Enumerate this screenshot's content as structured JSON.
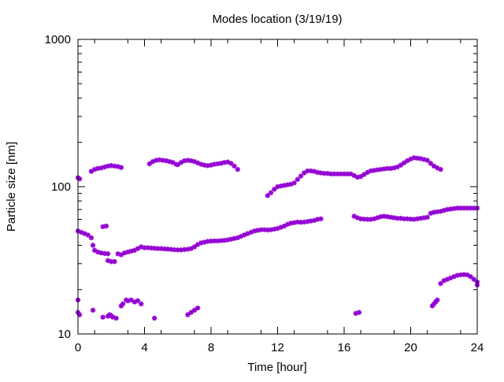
{
  "chart_data": {
    "type": "scatter",
    "title": "Modes location (3/19/19)",
    "xlabel": "Time [hour]",
    "ylabel": "Particle size [nm]",
    "xlim": [
      0,
      24
    ],
    "ylim": [
      10,
      1000
    ],
    "yscale": "log",
    "grid": false,
    "legend": "none",
    "x_ticks": [
      0,
      4,
      8,
      12,
      16,
      20,
      24
    ],
    "x_tick_labels": [
      "0",
      "4",
      "8",
      "12",
      "16",
      "20",
      "24"
    ],
    "y_ticks": [
      10,
      100,
      1000
    ],
    "y_tick_labels": [
      "10",
      "100",
      "1000"
    ],
    "marker_color": "#9400d3",
    "series": [
      {
        "points": [
          [
            0.0,
            115
          ],
          [
            0.1,
            113
          ],
          [
            0.8,
            127
          ],
          [
            1.0,
            131
          ],
          [
            1.2,
            133
          ],
          [
            1.4,
            134
          ],
          [
            1.6,
            136
          ],
          [
            1.8,
            138
          ],
          [
            2.0,
            139
          ],
          [
            2.2,
            138
          ],
          [
            2.4,
            137
          ],
          [
            2.6,
            135
          ],
          [
            4.3,
            143
          ],
          [
            4.5,
            148
          ],
          [
            4.7,
            151
          ],
          [
            4.9,
            152
          ],
          [
            5.1,
            151
          ],
          [
            5.3,
            150
          ],
          [
            5.5,
            148
          ],
          [
            5.7,
            146
          ],
          [
            5.9,
            142
          ],
          [
            6.0,
            141
          ],
          [
            6.2,
            146
          ],
          [
            6.4,
            150
          ],
          [
            6.6,
            151
          ],
          [
            6.8,
            150
          ],
          [
            7.0,
            148
          ],
          [
            7.2,
            145
          ],
          [
            7.4,
            142
          ],
          [
            7.6,
            140
          ],
          [
            7.8,
            139
          ],
          [
            8.0,
            140
          ],
          [
            8.2,
            142
          ],
          [
            8.4,
            143
          ],
          [
            8.6,
            144
          ],
          [
            8.8,
            146
          ],
          [
            9.0,
            147
          ],
          [
            9.2,
            144
          ],
          [
            9.4,
            138
          ],
          [
            9.6,
            131
          ],
          [
            11.4,
            87
          ],
          [
            11.6,
            91
          ],
          [
            11.8,
            96
          ],
          [
            12.0,
            100
          ],
          [
            12.2,
            101
          ],
          [
            12.4,
            102
          ],
          [
            12.6,
            103
          ],
          [
            12.8,
            104
          ],
          [
            13.0,
            106
          ],
          [
            13.2,
            112
          ],
          [
            13.4,
            118
          ],
          [
            13.6,
            124
          ],
          [
            13.8,
            128
          ],
          [
            14.0,
            128
          ],
          [
            14.2,
            127
          ],
          [
            14.4,
            125
          ],
          [
            14.6,
            124
          ],
          [
            14.8,
            123
          ],
          [
            15.0,
            123
          ],
          [
            15.2,
            122
          ],
          [
            15.4,
            122
          ],
          [
            15.6,
            122
          ],
          [
            15.8,
            122
          ],
          [
            16.0,
            122
          ],
          [
            16.2,
            122
          ],
          [
            16.4,
            122
          ],
          [
            16.6,
            119
          ],
          [
            16.8,
            116
          ],
          [
            17.0,
            117
          ],
          [
            17.2,
            121
          ],
          [
            17.4,
            125
          ],
          [
            17.6,
            128
          ],
          [
            17.8,
            129
          ],
          [
            18.0,
            130
          ],
          [
            18.2,
            131
          ],
          [
            18.4,
            132
          ],
          [
            18.6,
            133
          ],
          [
            18.8,
            133
          ],
          [
            19.0,
            134
          ],
          [
            19.2,
            136
          ],
          [
            19.4,
            140
          ],
          [
            19.6,
            145
          ],
          [
            19.8,
            150
          ],
          [
            20.0,
            154
          ],
          [
            20.2,
            157
          ],
          [
            20.4,
            156
          ],
          [
            20.6,
            155
          ],
          [
            20.8,
            153
          ],
          [
            21.0,
            151
          ],
          [
            21.2,
            144
          ],
          [
            21.4,
            138
          ],
          [
            21.6,
            134
          ],
          [
            21.8,
            131
          ],
          [
            0.0,
            50
          ],
          [
            0.2,
            49
          ],
          [
            0.4,
            48
          ],
          [
            0.6,
            47
          ],
          [
            0.8,
            45
          ],
          [
            0.9,
            40
          ],
          [
            1.0,
            37
          ],
          [
            1.2,
            36
          ],
          [
            1.4,
            35.5
          ],
          [
            1.6,
            35.2
          ],
          [
            1.8,
            35
          ],
          [
            1.5,
            53.5
          ],
          [
            1.7,
            54
          ],
          [
            1.8,
            31.5
          ],
          [
            2.0,
            31
          ],
          [
            2.2,
            31
          ],
          [
            2.4,
            35
          ],
          [
            2.6,
            34.5
          ],
          [
            2.8,
            35.5
          ],
          [
            3.0,
            36
          ],
          [
            3.2,
            36.5
          ],
          [
            3.4,
            37
          ],
          [
            3.6,
            38
          ],
          [
            3.8,
            39
          ],
          [
            4.0,
            38.5
          ],
          [
            4.2,
            38.5
          ],
          [
            4.4,
            38.3
          ],
          [
            4.6,
            38.2
          ],
          [
            4.8,
            38
          ],
          [
            5.0,
            38
          ],
          [
            5.2,
            37.8
          ],
          [
            5.4,
            37.7
          ],
          [
            5.6,
            37.5
          ],
          [
            5.8,
            37.3
          ],
          [
            6.0,
            37.2
          ],
          [
            6.2,
            37.2
          ],
          [
            6.4,
            37.4
          ],
          [
            6.6,
            37.6
          ],
          [
            6.8,
            38
          ],
          [
            7.0,
            39
          ],
          [
            7.2,
            40.5
          ],
          [
            7.4,
            41.5
          ],
          [
            7.6,
            42
          ],
          [
            7.8,
            42.5
          ],
          [
            8.0,
            42.7
          ],
          [
            8.2,
            42.8
          ],
          [
            8.4,
            42.8
          ],
          [
            8.6,
            43
          ],
          [
            8.8,
            43.2
          ],
          [
            9.0,
            43.5
          ],
          [
            9.2,
            44
          ],
          [
            9.4,
            44.5
          ],
          [
            9.6,
            45
          ],
          [
            9.8,
            46
          ],
          [
            10.0,
            47
          ],
          [
            10.2,
            48
          ],
          [
            10.4,
            49
          ],
          [
            10.6,
            50
          ],
          [
            10.8,
            50.5
          ],
          [
            11.0,
            51
          ],
          [
            11.2,
            51
          ],
          [
            11.4,
            50.8
          ],
          [
            11.6,
            51
          ],
          [
            11.8,
            51.5
          ],
          [
            12.0,
            52
          ],
          [
            12.2,
            53
          ],
          [
            12.4,
            54
          ],
          [
            12.6,
            55.5
          ],
          [
            12.8,
            56.5
          ],
          [
            13.0,
            57
          ],
          [
            13.2,
            57.5
          ],
          [
            13.4,
            57.3
          ],
          [
            13.6,
            57.5
          ],
          [
            13.8,
            58
          ],
          [
            14.0,
            58.5
          ],
          [
            14.2,
            59
          ],
          [
            14.4,
            60
          ],
          [
            14.6,
            60.5
          ],
          [
            16.6,
            63
          ],
          [
            16.8,
            61.5
          ],
          [
            17.0,
            60.5
          ],
          [
            17.2,
            60.2
          ],
          [
            17.4,
            60
          ],
          [
            17.6,
            60
          ],
          [
            17.8,
            60.5
          ],
          [
            18.0,
            61.5
          ],
          [
            18.2,
            62.5
          ],
          [
            18.4,
            63
          ],
          [
            18.6,
            62.5
          ],
          [
            18.8,
            62
          ],
          [
            19.0,
            61.5
          ],
          [
            19.2,
            61
          ],
          [
            19.4,
            61
          ],
          [
            19.6,
            60.5
          ],
          [
            19.8,
            60.5
          ],
          [
            20.0,
            60.2
          ],
          [
            20.2,
            60
          ],
          [
            20.4,
            60.5
          ],
          [
            20.6,
            61
          ],
          [
            20.8,
            61.5
          ],
          [
            21.0,
            62
          ],
          [
            21.2,
            66
          ],
          [
            21.4,
            67
          ],
          [
            21.6,
            67.5
          ],
          [
            21.8,
            68
          ],
          [
            22.0,
            69
          ],
          [
            22.2,
            70
          ],
          [
            22.4,
            70.5
          ],
          [
            22.6,
            71
          ],
          [
            22.8,
            71.5
          ],
          [
            23.0,
            71.5
          ],
          [
            23.2,
            71.5
          ],
          [
            23.4,
            71.5
          ],
          [
            23.6,
            71.5
          ],
          [
            23.8,
            71.5
          ],
          [
            24.0,
            71.5
          ],
          [
            21.8,
            22
          ],
          [
            22.0,
            23
          ],
          [
            22.2,
            23.5
          ],
          [
            22.4,
            24
          ],
          [
            22.6,
            24.5
          ],
          [
            22.8,
            25
          ],
          [
            23.0,
            25.2
          ],
          [
            23.2,
            25.3
          ],
          [
            23.4,
            25.2
          ],
          [
            23.6,
            24.5
          ],
          [
            23.8,
            23.5
          ],
          [
            24.0,
            22.5
          ],
          [
            24.0,
            21.5
          ],
          [
            21.3,
            15.5
          ],
          [
            21.4,
            16
          ],
          [
            21.5,
            16.5
          ],
          [
            21.6,
            17
          ],
          [
            0.0,
            17
          ],
          [
            0.0,
            14
          ],
          [
            0.1,
            13.5
          ],
          [
            0.9,
            14.5
          ],
          [
            1.5,
            13
          ],
          [
            1.8,
            13.2
          ],
          [
            1.9,
            13.5
          ],
          [
            2.0,
            13.3
          ],
          [
            2.1,
            13
          ],
          [
            2.3,
            12.8
          ],
          [
            2.6,
            15.5
          ],
          [
            2.7,
            16
          ],
          [
            2.9,
            17
          ],
          [
            3.0,
            16.8
          ],
          [
            3.2,
            17
          ],
          [
            3.4,
            16.5
          ],
          [
            3.6,
            16.8
          ],
          [
            3.8,
            16
          ],
          [
            4.6,
            12.8
          ],
          [
            6.6,
            13.5
          ],
          [
            6.8,
            14
          ],
          [
            7.0,
            14.5
          ],
          [
            7.2,
            15
          ],
          [
            16.7,
            13.8
          ],
          [
            16.9,
            14
          ]
        ]
      }
    ]
  }
}
